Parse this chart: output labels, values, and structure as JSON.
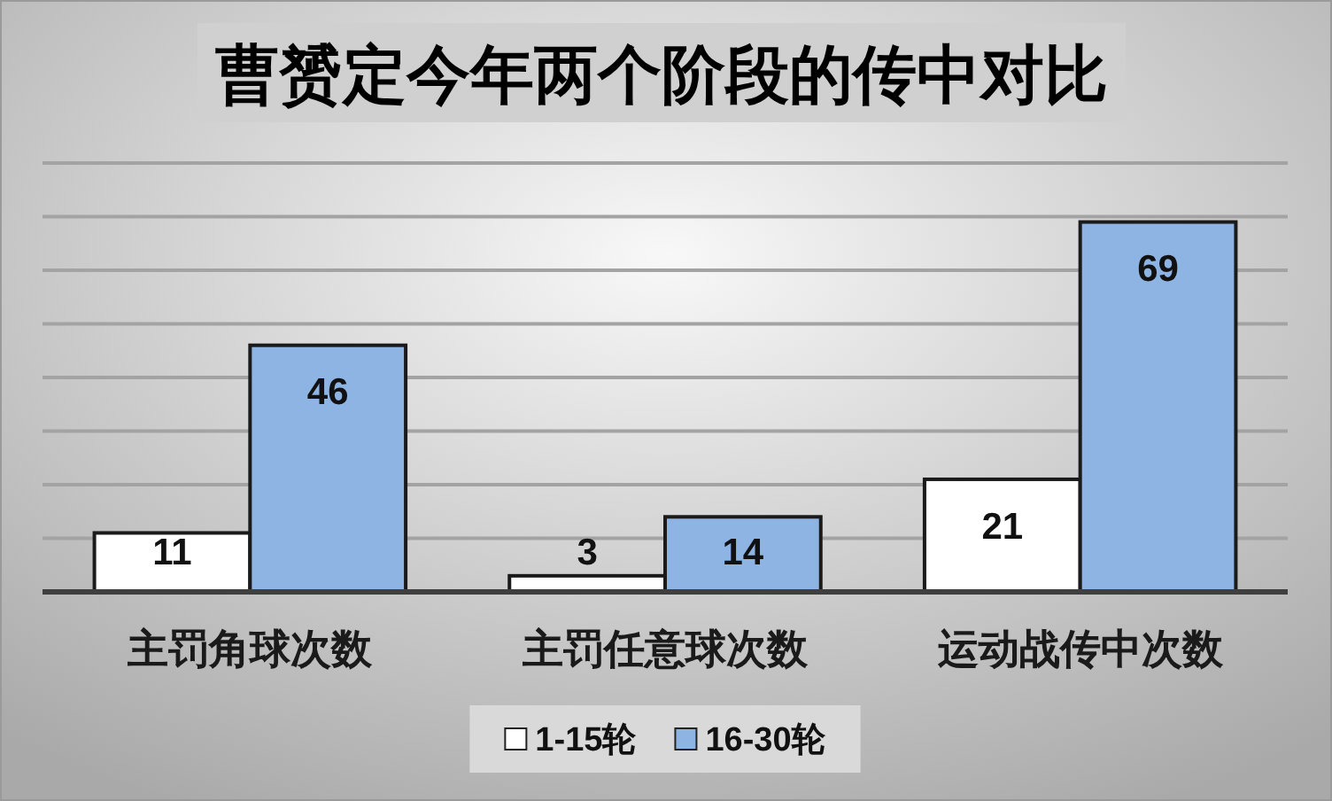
{
  "chart_data": {
    "type": "bar",
    "title": "曹赟定今年两个阶段的传中对比",
    "categories": [
      "主罚角球次数",
      "主罚任意球次数",
      "运动战传中次数"
    ],
    "series": [
      {
        "name": "1-15轮",
        "color": "#ffffff",
        "values": [
          11,
          3,
          21
        ]
      },
      {
        "name": "16-30轮",
        "color": "#8db4e2",
        "values": [
          46,
          14,
          69
        ]
      }
    ],
    "ylim": [
      0,
      80
    ],
    "yticks": [
      {
        "value": 0,
        "label": null
      },
      {
        "value": 10,
        "label": null
      },
      {
        "value": 20,
        "label": null
      },
      {
        "value": 30,
        "label": null
      },
      {
        "value": 40,
        "label": null
      },
      {
        "value": 50,
        "label": null
      },
      {
        "value": 60,
        "label": null
      },
      {
        "value": 70,
        "label": null
      },
      {
        "value": 80,
        "label": null
      }
    ],
    "grid": "y",
    "legend": "bottom",
    "data_labels": true,
    "tick_labels": "x"
  }
}
